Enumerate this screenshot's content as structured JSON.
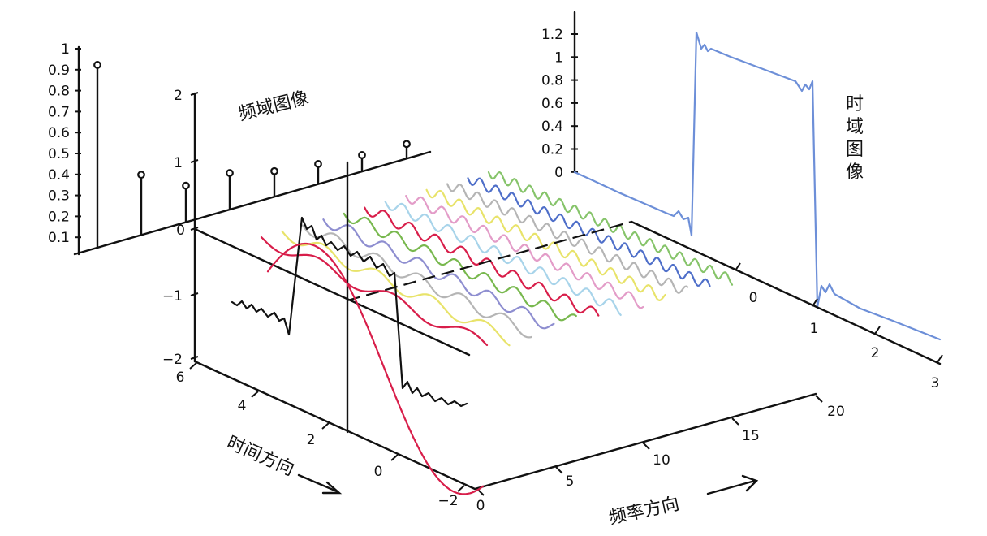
{
  "labels": {
    "freq_image": "频域图像",
    "time_image": [
      "时",
      "域",
      "图",
      "像"
    ],
    "time_direction": "时间方向",
    "freq_direction": "频率方向"
  },
  "left_axis": {
    "ticks": [
      "1",
      "0.9",
      "0.8",
      "0.7",
      "0.6",
      "0.5",
      "0.4",
      "0.3",
      "0.2",
      "0.1"
    ]
  },
  "vertical_axis": {
    "ticks": [
      "2",
      "1",
      "0",
      "−1",
      "−2"
    ]
  },
  "time_axis": {
    "ticks": [
      "6",
      "4",
      "2",
      "0",
      "−2"
    ]
  },
  "freq_axis": {
    "ticks": [
      "0",
      "5",
      "10",
      "15",
      "20"
    ]
  },
  "right_axis": {
    "ticks": [
      "1.2",
      "1",
      "0.8",
      "0.6",
      "0.4",
      "0.2",
      "0"
    ]
  },
  "depth_axis": {
    "ticks": [
      "0",
      "1",
      "2",
      "3"
    ]
  },
  "chart_data": {
    "type": "stem",
    "stem_values": [
      1,
      0.33,
      0.2,
      0.2,
      0.14,
      0.11,
      0.09,
      0.08
    ],
    "square_wave": {
      "y_high": 1.1,
      "y_low": 0
    }
  },
  "colors": {
    "ink": "#111111",
    "red": "#d81e4a",
    "square_blue": "#6d8fd8",
    "wave_colors": [
      "#d81e4a",
      "#e8e36a",
      "#b5b5b5",
      "#8e8ed0",
      "#78b84e",
      "#d81e4a",
      "#a8d4ea",
      "#e39cc8",
      "#e8e36a",
      "#b5b5b5",
      "#4f6fc9",
      "#86c46a"
    ]
  }
}
